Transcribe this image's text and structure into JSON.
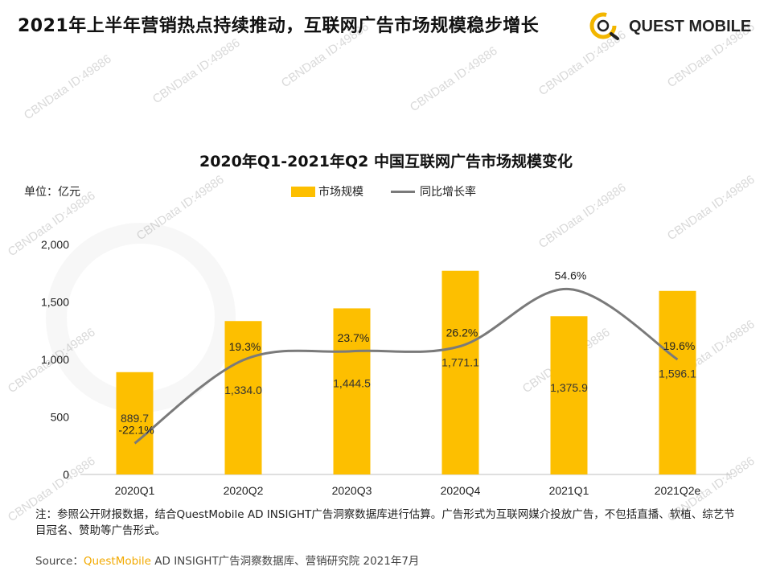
{
  "header": {
    "title": "2021年上半年营销热点持续推动，互联网广告市场规模稳步增长",
    "brand_name": "QUEST MOBILE"
  },
  "watermark_text": "CBNData ID:49886",
  "chart_data": {
    "type": "bar",
    "title": "2020年Q1-2021年Q2 中国互联网广告市场规模变化",
    "unit_label": "单位：亿元",
    "categories": [
      "2020Q1",
      "2020Q2",
      "2020Q3",
      "2020Q4",
      "2021Q1",
      "2021Q2e"
    ],
    "series": [
      {
        "name": "市场规模",
        "type": "bar",
        "values": [
          889.7,
          1334.0,
          1444.5,
          1771.1,
          1375.9,
          1596.1
        ],
        "labels": [
          "889.7",
          "1,334.0",
          "1,444.5",
          "1,771.1",
          "1,375.9",
          "1,596.1"
        ],
        "color": "#FDBF00"
      },
      {
        "name": "同比增长率",
        "type": "line",
        "values": [
          -22.1,
          19.3,
          23.7,
          26.2,
          54.6,
          19.6
        ],
        "labels": [
          "-22.1%",
          "19.3%",
          "23.7%",
          "26.2%",
          "54.6%",
          "19.6%"
        ],
        "color": "#7a7a7a"
      }
    ],
    "yticks": [
      "0",
      "500",
      "1,000",
      "1,500",
      "2,000"
    ],
    "ylim": [
      0,
      2000
    ],
    "grid": false,
    "legend_position": "top-center"
  },
  "footer": {
    "note": "注：参照公开财报数据，结合QuestMobile AD INSIGHT广告洞察数据库进行估算。广告形式为互联网媒介投放广告，不包括直播、软植、综艺节目冠名、赞助等广告形式。",
    "source_prefix": "Source：",
    "source_brand": "QuestMobile",
    "source_rest": " AD INSIGHT广告洞察数据库、营销研究院 2021年7月"
  }
}
